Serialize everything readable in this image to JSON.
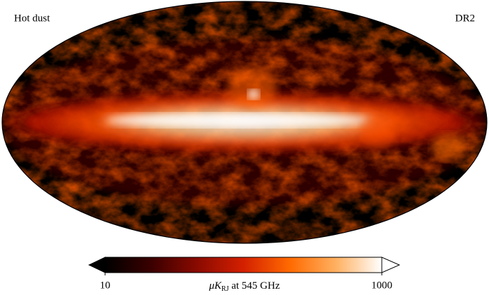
{
  "map": {
    "title": "Hot dust",
    "release": "DR2",
    "colorbar": {
      "scale": "log",
      "lim": [
        10,
        1000
      ],
      "ticks": [
        10,
        1000
      ],
      "label": {
        "symbol": "μK",
        "subscript": "RJ",
        "rest": " at 545 GHz"
      },
      "colors": [
        "#000000",
        "#3a0000",
        "#8a0a00",
        "#d42000",
        "#ff6a00",
        "#ffb060",
        "#ffffff"
      ]
    }
  }
}
